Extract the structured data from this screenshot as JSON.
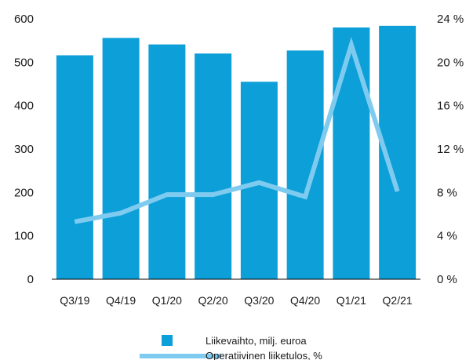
{
  "chart_data": {
    "type": "bar",
    "categories": [
      "Q3/19",
      "Q4/19",
      "Q1/20",
      "Q2/20",
      "Q3/20",
      "Q4/20",
      "Q1/21",
      "Q2/21"
    ],
    "series": [
      {
        "name": "Liikevaihto, milj. euroa",
        "type": "bar",
        "axis": "left",
        "color": "#0d9fd8",
        "values": [
          516,
          556,
          541,
          520,
          455,
          527,
          580,
          584
        ]
      },
      {
        "name": "Operatiivinen liiketulos, %",
        "type": "line",
        "axis": "right",
        "color": "#7fcbf0",
        "values": [
          5.3,
          6.1,
          7.8,
          7.8,
          8.9,
          7.6,
          21.6,
          8.1
        ]
      }
    ],
    "y_left": {
      "ticks": [
        "0",
        "100",
        "200",
        "300",
        "400",
        "500",
        "600"
      ],
      "min": 0,
      "max": 600
    },
    "y_right": {
      "ticks": [
        "0 %",
        "4 %",
        "8 %",
        "12 %",
        "16 %",
        "20 %",
        "24 %"
      ],
      "min": 0,
      "max": 24
    },
    "grid": false,
    "legend_position": "bottom"
  }
}
